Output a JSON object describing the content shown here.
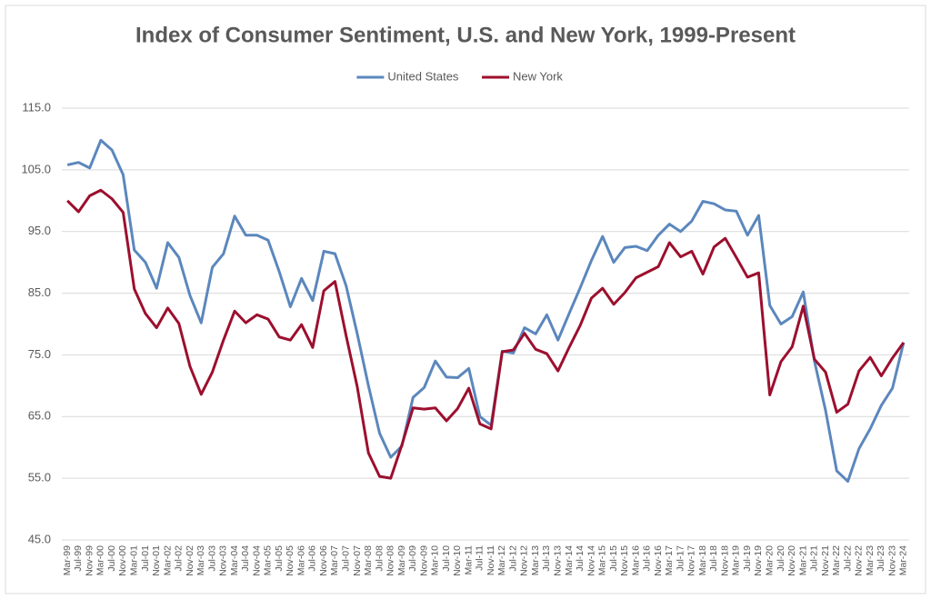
{
  "chart_data": {
    "type": "line",
    "title": "Index of Consumer Sentiment, U.S. and New York, 1999-Present",
    "categories": [
      "Mar-99",
      "Jul-99",
      "Nov-99",
      "Mar-00",
      "Jul-00",
      "Nov-00",
      "Mar-01",
      "Jul-01",
      "Nov-01",
      "Mar-02",
      "Jul-02",
      "Nov-02",
      "Mar-03",
      "Jul-03",
      "Nov-03",
      "Mar-04",
      "Jul-04",
      "Nov-04",
      "Mar-05",
      "Jul-05",
      "Nov-05",
      "Mar-06",
      "Jul-06",
      "Nov-06",
      "Mar-07",
      "Jul-07",
      "Nov-07",
      "Mar-08",
      "Jul-08",
      "Nov-08",
      "Mar-09",
      "Jul-09",
      "Nov-09",
      "Mar-10",
      "Jul-10",
      "Nov-10",
      "Mar-11",
      "Jul-11",
      "Nov-11",
      "Mar-12",
      "Jul-12",
      "Nov-12",
      "Mar-13",
      "Jul-13",
      "Nov-13",
      "Mar-14",
      "Jul-14",
      "Nov-14",
      "Mar-15",
      "Jul-15",
      "Nov-15",
      "Mar-16",
      "Jul-16",
      "Nov-16",
      "Mar-17",
      "Jul-17",
      "Nov-17",
      "Mar-18",
      "Jul-18",
      "Nov-18",
      "Mar-19",
      "Jul-19",
      "Nov-19",
      "Mar-20",
      "Jul-20",
      "Nov-20",
      "Mar-21",
      "Jul-21",
      "Nov-21",
      "Mar-22",
      "Jul-22",
      "Nov-22",
      "Mar-23",
      "Jul-23",
      "Nov-23",
      "Mar-24"
    ],
    "series": [
      {
        "name": "United States",
        "color": "#5b87bd",
        "values": [
          105.8,
          106.2,
          105.3,
          109.8,
          108.2,
          104.2,
          92,
          90,
          85.8,
          93.2,
          90.8,
          84.6,
          80.2,
          89.2,
          91.4,
          97.5,
          94.4,
          94.4,
          93.6,
          88.5,
          82.8,
          87.4,
          83.8,
          91.8,
          91.4,
          86.2,
          78.4,
          70,
          62.3,
          58.4,
          60.2,
          68.1,
          69.7,
          74,
          71.4,
          71.3,
          72.8,
          65,
          63.6,
          75.6,
          75.3,
          79.4,
          78.4,
          81.5,
          77.4,
          81.7,
          85.9,
          90.3,
          94.2,
          90,
          92.4,
          92.6,
          91.9,
          94.4,
          96.2,
          95,
          96.7,
          99.9,
          99.5,
          98.5,
          98.3,
          94.4,
          97.6,
          83,
          80,
          81.2,
          85.2,
          74,
          66,
          56.2,
          54.5,
          59.8,
          63,
          66.8,
          69.6,
          77
        ]
      },
      {
        "name": "New York",
        "color": "#9c0f2e",
        "values": [
          100,
          98.2,
          100.8,
          101.7,
          100.3,
          98.1,
          85.7,
          81.7,
          79.4,
          82.6,
          80.1,
          73.1,
          68.6,
          72.2,
          77.4,
          82.1,
          80.2,
          81.5,
          80.8,
          77.9,
          77.4,
          79.9,
          76.2,
          85.4,
          86.9,
          78.1,
          69.8,
          59.1,
          55.3,
          55,
          60.4,
          66.4,
          66.2,
          66.4,
          64.3,
          66.3,
          69.6,
          63.8,
          63,
          75.5,
          75.8,
          78.5,
          75.9,
          75.2,
          72.4,
          76.2,
          79.8,
          84.2,
          85.8,
          83.2,
          85.1,
          87.5,
          88.4,
          89.3,
          93.2,
          90.9,
          91.8,
          88.1,
          92.5,
          93.9,
          90.8,
          87.6,
          88.3,
          68.5,
          73.9,
          76.3,
          82.9,
          74.3,
          72.2,
          65.7,
          67,
          72.4,
          74.6,
          71.6,
          74.5,
          77
        ]
      }
    ],
    "ylim": [
      45,
      115
    ],
    "yticks": [
      {
        "value": 45,
        "label": "45.0"
      },
      {
        "value": 55,
        "label": "55.0"
      },
      {
        "value": 65,
        "label": "65.0"
      },
      {
        "value": 75,
        "label": "75.0"
      },
      {
        "value": 85,
        "label": "85.0"
      },
      {
        "value": 95,
        "label": "95.0"
      },
      {
        "value": 105,
        "label": "105.0"
      },
      {
        "value": 115,
        "label": "115.0"
      }
    ],
    "grid": true,
    "legend": "top"
  }
}
